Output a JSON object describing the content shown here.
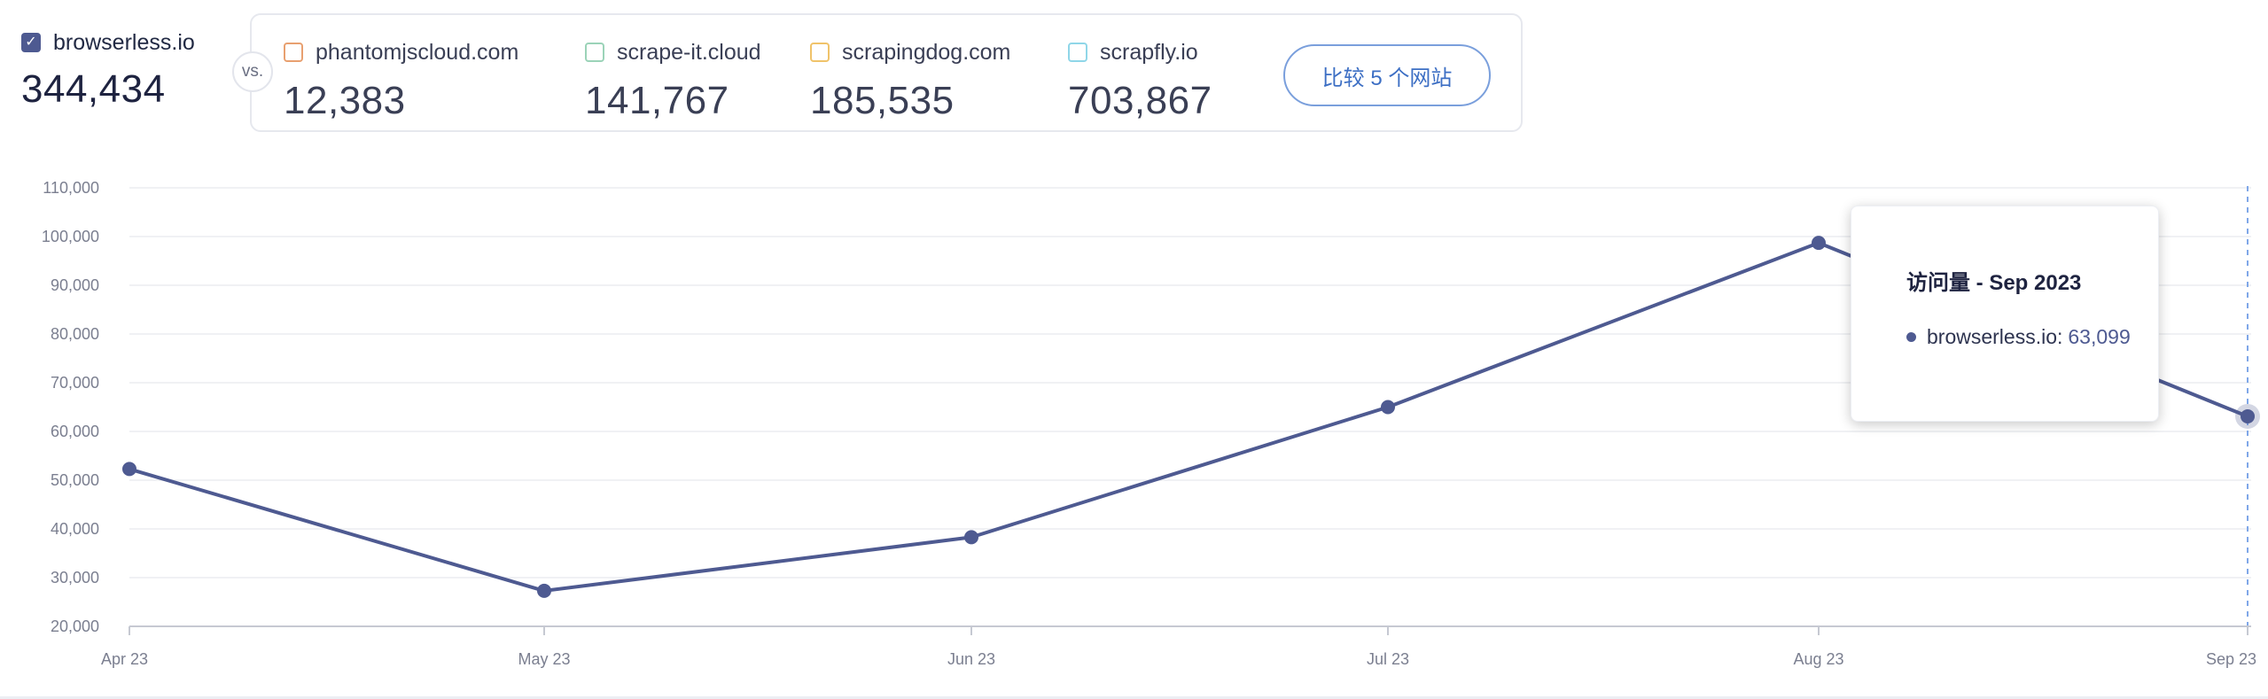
{
  "header": {
    "primary": {
      "name": "browserless.io",
      "value": "344,434",
      "checked": true,
      "color": "#4e5a91"
    },
    "vs_label": "vs.",
    "competitors": [
      {
        "name": "phantomjscloud.com",
        "value": "12,383",
        "color": "#e8a070"
      },
      {
        "name": "scrape-it.cloud",
        "value": "141,767",
        "color": "#9bd3b8"
      },
      {
        "name": "scrapingdog.com",
        "value": "185,535",
        "color": "#f0c36a"
      },
      {
        "name": "scrapfly.io",
        "value": "703,867",
        "color": "#8fd6e8"
      }
    ],
    "compare_button_label": "比较 5 个网站"
  },
  "tooltip": {
    "title": "访问量 - Sep 2023",
    "series_name": "browserless.io:",
    "series_value": "63,099"
  },
  "chart_data": {
    "type": "line",
    "title": "",
    "xlabel": "",
    "ylabel": "",
    "categories": [
      "Apr 23",
      "May 23",
      "Jun 23",
      "Jul 23",
      "Aug 23",
      "Sep 23"
    ],
    "series": [
      {
        "name": "browserless.io",
        "color": "#4e5a91",
        "values": [
          52300,
          27300,
          38300,
          65000,
          98700,
          63099
        ]
      }
    ],
    "y_ticks": [
      "20,000",
      "30,000",
      "40,000",
      "50,000",
      "60,000",
      "70,000",
      "80,000",
      "90,000",
      "100,000",
      "110,000"
    ],
    "ylim": [
      20000,
      110000
    ],
    "grid": true,
    "legend": "none",
    "highlighted_category": "Sep 23"
  }
}
